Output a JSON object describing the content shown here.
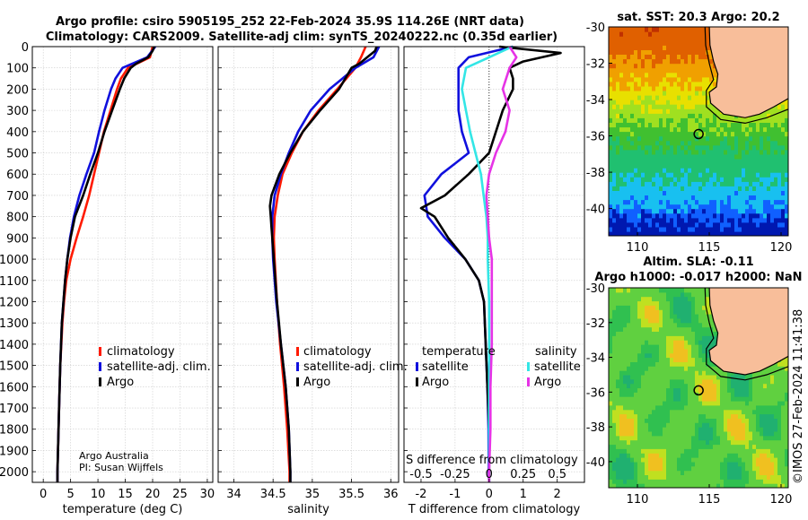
{
  "title_line1": "Argo profile: csiro 5905195_252 22-Feb-2024 35.9S 114.26E (NRT data)",
  "title_line2": "Climatology: CARS2009. Satellite-adj clim: synTS_20240222.nc (0.35d earlier)",
  "credit_line1": "Argo Australia",
  "credit_line2": "PI: Susan Wijffels",
  "timestamp": "©IMOS 27-Feb-2024 11:41:38",
  "colors": {
    "argo": "#000000",
    "climatology": "#ff1a00",
    "satellite": "#1010dd",
    "sal_sat": "#33e6e6",
    "sal_argo": "#e633e6"
  },
  "chart_data": [
    {
      "type": "line",
      "name": "temperature-profile",
      "xlabel": "temperature (deg C)",
      "xlim": [
        -2,
        31
      ],
      "ylim": [
        2050,
        0
      ],
      "xticks": [
        0,
        5,
        10,
        15,
        20,
        25,
        30
      ],
      "yticks": [
        0,
        100,
        200,
        300,
        400,
        500,
        600,
        700,
        800,
        900,
        1000,
        1100,
        1200,
        1300,
        1400,
        1500,
        1600,
        1700,
        1800,
        1900,
        2000
      ],
      "legend": [
        "climatology",
        "satellite-adj. clim.",
        "Argo"
      ],
      "series": [
        {
          "name": "climatology",
          "color": "#ff1a00",
          "depth": [
            0,
            50,
            100,
            150,
            200,
            300,
            400,
            500,
            600,
            700,
            800,
            900,
            1000,
            1100,
            1200,
            1300,
            1500,
            1700,
            2000,
            2050
          ],
          "values": [
            20.0,
            19.5,
            15.5,
            14.2,
            13.5,
            12.3,
            11.1,
            10.2,
            9.3,
            8.4,
            7.3,
            6.1,
            5.0,
            4.2,
            3.8,
            3.5,
            3.1,
            2.9,
            2.6,
            2.6
          ]
        },
        {
          "name": "satellite-adj. clim.",
          "color": "#1010dd",
          "depth": [
            0,
            50,
            100,
            150,
            200,
            300,
            400,
            500,
            600,
            700,
            800,
            900,
            1000,
            1100,
            1200,
            1300,
            1500,
            1700,
            2000,
            2050
          ],
          "values": [
            20.5,
            19.0,
            14.5,
            13.2,
            12.4,
            11.2,
            10.2,
            9.3,
            7.9,
            6.6,
            5.6,
            4.9,
            4.4,
            4.0,
            3.7,
            3.4,
            3.1,
            2.9,
            2.6,
            2.6
          ]
        },
        {
          "name": "Argo",
          "color": "#000000",
          "depth": [
            0,
            20,
            50,
            80,
            100,
            150,
            200,
            300,
            400,
            500,
            600,
            700,
            800,
            900,
            1000,
            1100,
            1200,
            1300,
            1500,
            1700,
            2000,
            2050
          ],
          "values": [
            20.3,
            20.0,
            19.2,
            17.0,
            16.0,
            14.8,
            14.0,
            12.6,
            11.2,
            10.0,
            8.6,
            7.3,
            5.8,
            5.0,
            4.4,
            4.0,
            3.7,
            3.4,
            3.1,
            2.9,
            2.6,
            2.6
          ]
        }
      ]
    },
    {
      "type": "line",
      "name": "salinity-profile",
      "xlabel": "salinity",
      "xlim": [
        33.8,
        36.1
      ],
      "ylim": [
        2050,
        0
      ],
      "xticks": [
        34,
        34.5,
        35,
        35.5,
        36
      ],
      "legend": [
        "climatology",
        "satellite-adj. clim.",
        "Argo"
      ],
      "series": [
        {
          "name": "climatology",
          "color": "#ff1a00",
          "depth": [
            0,
            50,
            100,
            200,
            300,
            400,
            500,
            600,
            700,
            800,
            900,
            1000,
            1200,
            1400,
            1600,
            1800,
            2000,
            2050
          ],
          "values": [
            35.68,
            35.62,
            35.55,
            35.32,
            35.08,
            34.88,
            34.74,
            34.62,
            34.56,
            34.52,
            34.51,
            34.52,
            34.55,
            34.59,
            34.64,
            34.68,
            34.71,
            34.71
          ]
        },
        {
          "name": "satellite-adj. clim.",
          "color": "#1010dd",
          "depth": [
            0,
            50,
            100,
            200,
            300,
            400,
            500,
            600,
            700,
            800,
            900,
            1000,
            1200,
            1400,
            1600,
            1800,
            2000,
            2050
          ],
          "values": [
            35.85,
            35.78,
            35.55,
            35.22,
            34.98,
            34.82,
            34.7,
            34.6,
            34.52,
            34.49,
            34.49,
            34.5,
            34.54,
            34.6,
            34.66,
            34.7,
            34.72,
            34.72
          ]
        },
        {
          "name": "Argo",
          "color": "#000000",
          "depth": [
            0,
            20,
            50,
            80,
            100,
            200,
            300,
            400,
            500,
            600,
            700,
            750,
            800,
            850,
            900,
            1000,
            1200,
            1400,
            1600,
            1800,
            2000,
            2050
          ],
          "values": [
            35.82,
            35.8,
            35.7,
            35.6,
            35.5,
            35.34,
            35.1,
            34.88,
            34.72,
            34.58,
            34.48,
            34.46,
            34.47,
            34.48,
            34.49,
            34.51,
            34.55,
            34.6,
            34.66,
            34.7,
            34.72,
            34.72
          ]
        }
      ]
    },
    {
      "type": "line",
      "name": "difference-profile",
      "xlabel": "T difference from climatology",
      "xlabel2": "S difference from climatology",
      "xlim": [
        -2.5,
        2.8
      ],
      "ylim": [
        2050,
        0
      ],
      "xticks": [
        -2,
        -1,
        0,
        1,
        2
      ],
      "xticks2": [
        "-0.5",
        "-0.25",
        "0",
        "0.25",
        "0.5"
      ],
      "legend_temperature_title": "temperature",
      "legend_salinity_title": "salinity",
      "legend_temperature": [
        "satellite",
        "Argo"
      ],
      "legend_salinity": [
        "satellite",
        "Argo"
      ],
      "series": [
        {
          "name": "T satellite",
          "color": "#1010dd",
          "depth": [
            0,
            50,
            100,
            200,
            300,
            400,
            500,
            600,
            700,
            800,
            900,
            1000,
            1100,
            1200,
            1400,
            1600,
            1800,
            2000,
            2050
          ],
          "values": [
            0.7,
            -0.6,
            -0.9,
            -0.9,
            -0.9,
            -0.8,
            -0.6,
            -1.4,
            -1.9,
            -1.8,
            -1.3,
            -0.7,
            -0.3,
            -0.15,
            -0.1,
            -0.05,
            -0.02,
            -0.01,
            0.0
          ]
        },
        {
          "name": "T Argo",
          "color": "#000000",
          "depth": [
            0,
            30,
            70,
            100,
            150,
            200,
            300,
            400,
            500,
            600,
            700,
            760,
            800,
            900,
            1000,
            1100,
            1200,
            1400,
            1600,
            1800,
            2000,
            2050
          ],
          "values": [
            0.3,
            2.1,
            1.0,
            0.6,
            0.7,
            0.7,
            0.4,
            0.2,
            0.0,
            -0.6,
            -1.3,
            -2.0,
            -1.6,
            -1.2,
            -0.7,
            -0.3,
            -0.15,
            -0.1,
            -0.05,
            0.0,
            0.0,
            0.0
          ]
        },
        {
          "name": "S satellite",
          "color": "#33e6e6",
          "depth": [
            0,
            50,
            100,
            200,
            300,
            400,
            500,
            600,
            700,
            800,
            900,
            1000,
            1200,
            1400,
            1600,
            1800,
            2000,
            2050
          ],
          "values": [
            0.17,
            0.0,
            -0.17,
            -0.2,
            -0.17,
            -0.14,
            -0.1,
            -0.06,
            -0.04,
            -0.02,
            -0.01,
            -0.01,
            0.0,
            0.0,
            0.0,
            0.0,
            0.0,
            0.0
          ]
        },
        {
          "name": "S Argo",
          "color": "#e633e6",
          "depth": [
            0,
            50,
            100,
            200,
            300,
            400,
            500,
            600,
            700,
            800,
            900,
            1000,
            1200,
            1400,
            1600,
            1800,
            2000,
            2050
          ],
          "values": [
            0.15,
            0.2,
            0.15,
            0.1,
            0.15,
            0.12,
            0.05,
            0.0,
            -0.02,
            -0.01,
            0.0,
            0.02,
            0.02,
            0.02,
            0.01,
            0.01,
            0.0,
            0.0
          ]
        }
      ]
    },
    {
      "type": "heatmap",
      "name": "sst-map",
      "title": "sat. SST: 20.3 Argo: 20.2",
      "xlim": [
        108,
        120.5
      ],
      "ylim": [
        -41.5,
        -30
      ],
      "xticks": [
        110,
        115,
        120
      ],
      "yticks": [
        -30,
        -32,
        -34,
        -36,
        -38,
        -40
      ],
      "argo_lon": 114.26,
      "argo_lat": -35.9
    },
    {
      "type": "heatmap",
      "name": "sla-map",
      "title_line1": "Altim. SLA: -0.11",
      "title_line2": "Argo h1000: -0.017 h2000: NaN",
      "xlim": [
        108,
        120.5
      ],
      "ylim": [
        -41.5,
        -30
      ],
      "xticks": [
        110,
        115,
        120
      ],
      "yticks": [
        -30,
        -32,
        -34,
        -36,
        -38,
        -40
      ],
      "argo_lon": 114.26,
      "argo_lat": -35.9
    }
  ]
}
